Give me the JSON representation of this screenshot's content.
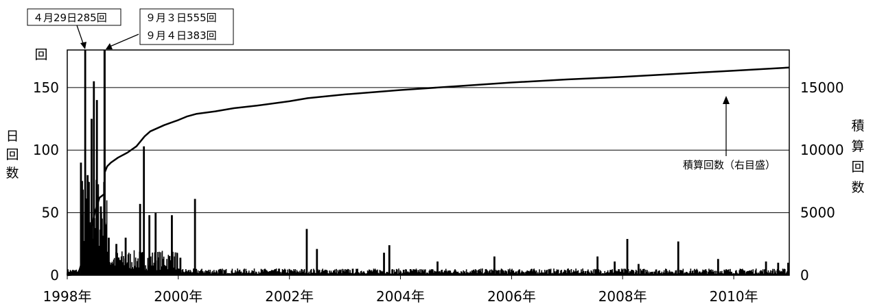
{
  "chart_data": {
    "type": "bar",
    "combo": "daily bars (left axis) with cumulative line (right axis)",
    "left_axis": {
      "label": [
        "日",
        "回",
        "数"
      ],
      "unit": "回",
      "ylim": [
        0,
        180
      ],
      "ticks": [
        "0",
        "50",
        "100",
        "150"
      ],
      "grid": true
    },
    "right_axis": {
      "label": [
        "積",
        "算",
        "回",
        "数"
      ],
      "ylim": [
        0,
        18000
      ],
      "ticks": [
        "0",
        "5000",
        "10000",
        "15000"
      ]
    },
    "x_axis": {
      "range": [
        "1998-01-01",
        "2011-01-01"
      ],
      "ticks": [
        "1998年",
        "2000年",
        "2002年",
        "2004年",
        "2006年",
        "2008年",
        "2010年"
      ],
      "tick_years": [
        1998,
        2000,
        2002,
        2004,
        2006,
        2008,
        2010
      ]
    },
    "annotations": {
      "peak1": "４月29日285回",
      "peak2_line1": "９月３日555回",
      "peak2_line2": "９月４日383回",
      "cumulative": "積算回数（右目盛）"
    },
    "daily_series": {
      "name": "日回数",
      "clipped_top": 180,
      "background_level_after_2000": 3,
      "spikes": [
        {
          "date": "1998-04-01",
          "value": 90
        },
        {
          "date": "1998-04-29",
          "value": 285
        },
        {
          "date": "1998-05-15",
          "value": 80
        },
        {
          "date": "1998-06-10",
          "value": 125
        },
        {
          "date": "1998-06-25",
          "value": 155
        },
        {
          "date": "1998-07-15",
          "value": 140
        },
        {
          "date": "1998-08-10",
          "value": 55
        },
        {
          "date": "1998-09-03",
          "value": 555
        },
        {
          "date": "1998-09-04",
          "value": 383
        },
        {
          "date": "1998-10-01",
          "value": 30
        },
        {
          "date": "1998-11-20",
          "value": 25
        },
        {
          "date": "1999-01-20",
          "value": 30
        },
        {
          "date": "1999-04-25",
          "value": 57
        },
        {
          "date": "1999-05-20",
          "value": 103
        },
        {
          "date": "1999-06-25",
          "value": 48
        },
        {
          "date": "1999-08-05",
          "value": 50
        },
        {
          "date": "1999-11-20",
          "value": 48
        },
        {
          "date": "2000-01-15",
          "value": 14
        },
        {
          "date": "2000-04-20",
          "value": 61
        },
        {
          "date": "2002-04-25",
          "value": 37
        },
        {
          "date": "2002-07-01",
          "value": 21
        },
        {
          "date": "2003-09-15",
          "value": 18
        },
        {
          "date": "2003-10-20",
          "value": 24
        },
        {
          "date": "2004-09-01",
          "value": 11
        },
        {
          "date": "2005-09-10",
          "value": 15
        },
        {
          "date": "2007-07-20",
          "value": 15
        },
        {
          "date": "2007-11-10",
          "value": 11
        },
        {
          "date": "2008-02-01",
          "value": 29
        },
        {
          "date": "2008-04-15",
          "value": 9
        },
        {
          "date": "2009-01-01",
          "value": 27
        },
        {
          "date": "2009-09-20",
          "value": 13
        },
        {
          "date": "2010-08-01",
          "value": 11
        },
        {
          "date": "2010-10-20",
          "value": 10
        },
        {
          "date": "2010-12-25",
          "value": 10
        }
      ]
    },
    "cumulative_series": {
      "name": "積算回数",
      "points": [
        {
          "date": "1998-01-01",
          "value": 0
        },
        {
          "date": "1998-03-15",
          "value": 100
        },
        {
          "date": "1998-04-01",
          "value": 800
        },
        {
          "date": "1998-04-28",
          "value": 1700
        },
        {
          "date": "1998-04-30",
          "value": 2200
        },
        {
          "date": "1998-06-01",
          "value": 3300
        },
        {
          "date": "1998-07-01",
          "value": 5000
        },
        {
          "date": "1998-08-01",
          "value": 6200
        },
        {
          "date": "1998-09-02",
          "value": 6500
        },
        {
          "date": "1998-09-03",
          "value": 7600
        },
        {
          "date": "1998-09-04",
          "value": 8200
        },
        {
          "date": "1998-09-20",
          "value": 8700
        },
        {
          "date": "1998-10-15",
          "value": 9000
        },
        {
          "date": "1998-12-01",
          "value": 9400
        },
        {
          "date": "1999-02-01",
          "value": 9800
        },
        {
          "date": "1999-04-01",
          "value": 10300
        },
        {
          "date": "1999-05-25",
          "value": 11100
        },
        {
          "date": "1999-07-01",
          "value": 11500
        },
        {
          "date": "1999-10-01",
          "value": 12000
        },
        {
          "date": "2000-01-01",
          "value": 12400
        },
        {
          "date": "2000-03-01",
          "value": 12700
        },
        {
          "date": "2000-05-01",
          "value": 12900
        },
        {
          "date": "2000-09-01",
          "value": 13100
        },
        {
          "date": "2001-01-01",
          "value": 13350
        },
        {
          "date": "2001-06-01",
          "value": 13550
        },
        {
          "date": "2002-01-01",
          "value": 13900
        },
        {
          "date": "2002-05-01",
          "value": 14150
        },
        {
          "date": "2003-01-01",
          "value": 14450
        },
        {
          "date": "2004-01-01",
          "value": 14800
        },
        {
          "date": "2005-01-01",
          "value": 15100
        },
        {
          "date": "2006-01-01",
          "value": 15400
        },
        {
          "date": "2007-01-01",
          "value": 15650
        },
        {
          "date": "2008-01-01",
          "value": 15850
        },
        {
          "date": "2009-01-01",
          "value": 16100
        },
        {
          "date": "2010-01-01",
          "value": 16350
        },
        {
          "date": "2011-01-01",
          "value": 16600
        }
      ]
    }
  }
}
